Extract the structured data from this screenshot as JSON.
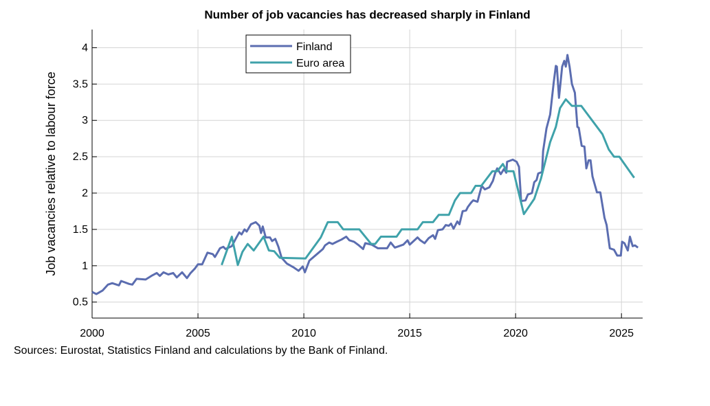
{
  "chart_data": {
    "type": "line",
    "title": "Number of job vacancies has decreased sharply in Finland",
    "xlabel": "",
    "ylabel": "Job vacancies relative to labour force",
    "xlim": [
      2000,
      2026
    ],
    "ylim": [
      0.28,
      4.25
    ],
    "xticks": [
      "2000",
      "2005",
      "2010",
      "2015",
      "2020",
      "2025"
    ],
    "yticks": [
      "0.5",
      "1",
      "1.5",
      "2",
      "2.5",
      "3",
      "3.5",
      "4"
    ],
    "grid": true,
    "legend_placement": "top-center",
    "series": [
      {
        "name": "Finland",
        "color": "#5b6db0",
        "points": [
          [
            2000.0,
            0.64
          ],
          [
            2000.2,
            0.61
          ],
          [
            2000.5,
            0.66
          ],
          [
            2000.75,
            0.74
          ],
          [
            2000.95,
            0.76
          ],
          [
            2001.27,
            0.73
          ],
          [
            2001.37,
            0.79
          ],
          [
            2001.75,
            0.75
          ],
          [
            2001.9,
            0.74
          ],
          [
            2002.1,
            0.82
          ],
          [
            2002.53,
            0.81
          ],
          [
            2002.8,
            0.86
          ],
          [
            2003.05,
            0.9
          ],
          [
            2003.2,
            0.86
          ],
          [
            2003.37,
            0.91
          ],
          [
            2003.6,
            0.88
          ],
          [
            2003.83,
            0.9
          ],
          [
            2004.0,
            0.84
          ],
          [
            2004.25,
            0.91
          ],
          [
            2004.48,
            0.83
          ],
          [
            2004.65,
            0.9
          ],
          [
            2004.85,
            0.96
          ],
          [
            2005.0,
            1.02
          ],
          [
            2005.2,
            1.02
          ],
          [
            2005.45,
            1.18
          ],
          [
            2005.7,
            1.16
          ],
          [
            2005.8,
            1.12
          ],
          [
            2006.04,
            1.24
          ],
          [
            2006.2,
            1.26
          ],
          [
            2006.3,
            1.23
          ],
          [
            2006.6,
            1.27
          ],
          [
            2006.8,
            1.38
          ],
          [
            2006.95,
            1.46
          ],
          [
            2007.06,
            1.43
          ],
          [
            2007.2,
            1.5
          ],
          [
            2007.3,
            1.47
          ],
          [
            2007.5,
            1.57
          ],
          [
            2007.73,
            1.6
          ],
          [
            2007.9,
            1.55
          ],
          [
            2007.98,
            1.45
          ],
          [
            2008.06,
            1.54
          ],
          [
            2008.2,
            1.39
          ],
          [
            2008.4,
            1.39
          ],
          [
            2008.5,
            1.34
          ],
          [
            2008.65,
            1.37
          ],
          [
            2008.8,
            1.26
          ],
          [
            2008.95,
            1.11
          ],
          [
            2009.2,
            1.03
          ],
          [
            2009.5,
            0.98
          ],
          [
            2009.75,
            0.93
          ],
          [
            2009.95,
            0.99
          ],
          [
            2010.05,
            0.91
          ],
          [
            2010.26,
            1.07
          ],
          [
            2010.7,
            1.18
          ],
          [
            2010.9,
            1.23
          ],
          [
            2011.0,
            1.28
          ],
          [
            2011.2,
            1.32
          ],
          [
            2011.35,
            1.3
          ],
          [
            2011.56,
            1.33
          ],
          [
            2011.78,
            1.36
          ],
          [
            2012.0,
            1.4
          ],
          [
            2012.15,
            1.35
          ],
          [
            2012.37,
            1.33
          ],
          [
            2012.6,
            1.28
          ],
          [
            2012.8,
            1.23
          ],
          [
            2012.9,
            1.31
          ],
          [
            2013.2,
            1.29
          ],
          [
            2013.5,
            1.24
          ],
          [
            2013.93,
            1.24
          ],
          [
            2014.1,
            1.32
          ],
          [
            2014.3,
            1.25
          ],
          [
            2014.7,
            1.29
          ],
          [
            2014.9,
            1.35
          ],
          [
            2015.0,
            1.29
          ],
          [
            2015.37,
            1.39
          ],
          [
            2015.5,
            1.35
          ],
          [
            2015.7,
            1.31
          ],
          [
            2015.9,
            1.38
          ],
          [
            2016.1,
            1.42
          ],
          [
            2016.2,
            1.37
          ],
          [
            2016.33,
            1.49
          ],
          [
            2016.55,
            1.5
          ],
          [
            2016.7,
            1.56
          ],
          [
            2016.85,
            1.55
          ],
          [
            2016.95,
            1.58
          ],
          [
            2017.07,
            1.51
          ],
          [
            2017.25,
            1.61
          ],
          [
            2017.35,
            1.57
          ],
          [
            2017.5,
            1.75
          ],
          [
            2017.66,
            1.76
          ],
          [
            2017.75,
            1.81
          ],
          [
            2017.9,
            1.87
          ],
          [
            2018.0,
            1.9
          ],
          [
            2018.2,
            1.88
          ],
          [
            2018.27,
            1.96
          ],
          [
            2018.4,
            2.1
          ],
          [
            2018.55,
            2.05
          ],
          [
            2018.76,
            2.08
          ],
          [
            2018.93,
            2.17
          ],
          [
            2019.04,
            2.28
          ],
          [
            2019.13,
            2.34
          ],
          [
            2019.3,
            2.26
          ],
          [
            2019.45,
            2.33
          ],
          [
            2019.56,
            2.28
          ],
          [
            2019.6,
            2.43
          ],
          [
            2019.87,
            2.46
          ],
          [
            2020.05,
            2.43
          ],
          [
            2020.16,
            2.36
          ],
          [
            2020.26,
            1.89
          ],
          [
            2020.47,
            1.9
          ],
          [
            2020.58,
            1.98
          ],
          [
            2020.77,
            2.0
          ],
          [
            2020.88,
            2.15
          ],
          [
            2020.99,
            2.18
          ],
          [
            2021.07,
            2.27
          ],
          [
            2021.25,
            2.29
          ],
          [
            2021.3,
            2.58
          ],
          [
            2021.46,
            2.89
          ],
          [
            2021.63,
            3.08
          ],
          [
            2021.8,
            3.52
          ],
          [
            2021.9,
            3.75
          ],
          [
            2021.95,
            3.74
          ],
          [
            2022.05,
            3.31
          ],
          [
            2022.2,
            3.74
          ],
          [
            2022.3,
            3.82
          ],
          [
            2022.37,
            3.74
          ],
          [
            2022.45,
            3.9
          ],
          [
            2022.55,
            3.74
          ],
          [
            2022.66,
            3.5
          ],
          [
            2022.8,
            3.38
          ],
          [
            2022.92,
            2.91
          ],
          [
            2022.98,
            2.9
          ],
          [
            2023.12,
            2.65
          ],
          [
            2023.25,
            2.64
          ],
          [
            2023.34,
            2.34
          ],
          [
            2023.45,
            2.45
          ],
          [
            2023.54,
            2.45
          ],
          [
            2023.63,
            2.23
          ],
          [
            2023.84,
            2.01
          ],
          [
            2024.0,
            2.01
          ],
          [
            2024.2,
            1.66
          ],
          [
            2024.3,
            1.56
          ],
          [
            2024.45,
            1.24
          ],
          [
            2024.65,
            1.22
          ],
          [
            2024.8,
            1.14
          ],
          [
            2024.97,
            1.14
          ],
          [
            2025.03,
            1.33
          ],
          [
            2025.14,
            1.31
          ],
          [
            2025.3,
            1.21
          ],
          [
            2025.4,
            1.4
          ],
          [
            2025.53,
            1.27
          ],
          [
            2025.64,
            1.28
          ],
          [
            2025.78,
            1.25
          ]
        ]
      },
      {
        "name": "Euro area",
        "color": "#3fa2aa",
        "points": [
          [
            2006.12,
            1.01
          ],
          [
            2006.6,
            1.4
          ],
          [
            2006.88,
            1.01
          ],
          [
            2007.1,
            1.19
          ],
          [
            2007.35,
            1.3
          ],
          [
            2007.63,
            1.21
          ],
          [
            2008.1,
            1.4
          ],
          [
            2008.35,
            1.21
          ],
          [
            2008.6,
            1.2
          ],
          [
            2008.86,
            1.11
          ],
          [
            2010.08,
            1.1
          ],
          [
            2010.8,
            1.39
          ],
          [
            2011.13,
            1.6
          ],
          [
            2011.6,
            1.6
          ],
          [
            2011.86,
            1.5
          ],
          [
            2012.62,
            1.5
          ],
          [
            2013.18,
            1.3
          ],
          [
            2013.37,
            1.3
          ],
          [
            2013.64,
            1.4
          ],
          [
            2014.38,
            1.4
          ],
          [
            2014.62,
            1.5
          ],
          [
            2015.37,
            1.5
          ],
          [
            2015.62,
            1.6
          ],
          [
            2016.1,
            1.6
          ],
          [
            2016.37,
            1.7
          ],
          [
            2016.85,
            1.7
          ],
          [
            2017.14,
            1.9
          ],
          [
            2017.38,
            2.0
          ],
          [
            2017.9,
            2.0
          ],
          [
            2018.11,
            2.1
          ],
          [
            2018.38,
            2.1
          ],
          [
            2018.9,
            2.3
          ],
          [
            2019.13,
            2.3
          ],
          [
            2019.4,
            2.4
          ],
          [
            2019.58,
            2.3
          ],
          [
            2019.9,
            2.3
          ],
          [
            2020.39,
            1.71
          ],
          [
            2020.88,
            1.92
          ],
          [
            2021.2,
            2.2
          ],
          [
            2021.63,
            2.7
          ],
          [
            2021.9,
            2.91
          ],
          [
            2022.1,
            3.17
          ],
          [
            2022.37,
            3.29
          ],
          [
            2022.66,
            3.2
          ],
          [
            2023.1,
            3.2
          ],
          [
            2024.1,
            2.81
          ],
          [
            2024.4,
            2.6
          ],
          [
            2024.65,
            2.5
          ],
          [
            2024.9,
            2.5
          ],
          [
            2025.6,
            2.21
          ]
        ]
      }
    ]
  },
  "source": "Sources: Eurostat, Statistics Finland and calculations by the Bank of Finland."
}
